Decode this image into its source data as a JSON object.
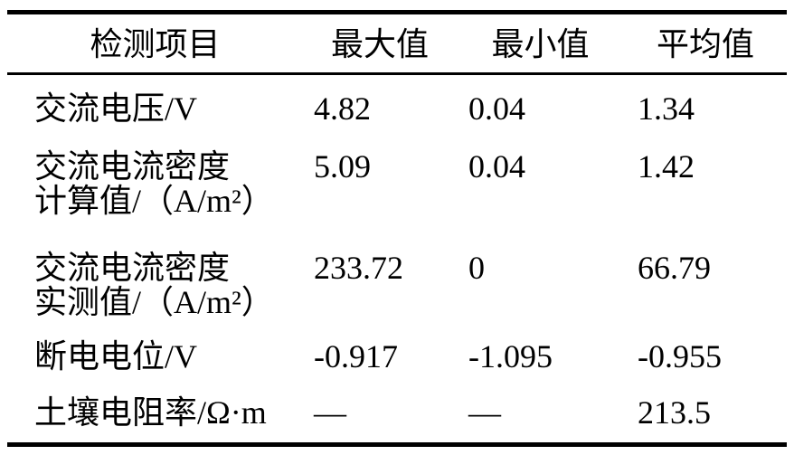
{
  "colors": {
    "background": "#ffffff",
    "rule": "#000000",
    "text": "#000000"
  },
  "table": {
    "headers": {
      "item": "检测项目",
      "max": "最大值",
      "min": "最小值",
      "avg": "平均值"
    },
    "rows": [
      {
        "item": [
          "交流电压/V"
        ],
        "max": "4.82",
        "min": "0.04",
        "avg": "1.34"
      },
      {
        "item": [
          "交流电流密度",
          "计算值/（A/m²）"
        ],
        "max": "5.09",
        "min": "0.04",
        "avg": "1.42"
      },
      {
        "item": [
          "交流电流密度",
          "实测值/（A/m²）"
        ],
        "max": "233.72",
        "min": "0",
        "avg": "66.79"
      },
      {
        "item": [
          "断电电位/V"
        ],
        "max": "-0.917",
        "min": "-1.095",
        "avg": "-0.955"
      },
      {
        "item": [
          "土壤电阻率/Ω·m"
        ],
        "max": "—",
        "min": "—",
        "avg": "213.5"
      }
    ]
  },
  "chart_data": {
    "type": "table",
    "columns": [
      "检测项目",
      "最大值",
      "最小值",
      "平均值"
    ],
    "rows": [
      [
        "交流电压/V",
        4.82,
        0.04,
        1.34
      ],
      [
        "交流电流密度计算值/（A/m²）",
        5.09,
        0.04,
        1.42
      ],
      [
        "交流电流密度实测值/（A/m²）",
        233.72,
        0,
        66.79
      ],
      [
        "断电电位/V",
        -0.917,
        -1.095,
        -0.955
      ],
      [
        "土壤电阻率/Ω·m",
        "—",
        "—",
        213.5
      ]
    ]
  }
}
